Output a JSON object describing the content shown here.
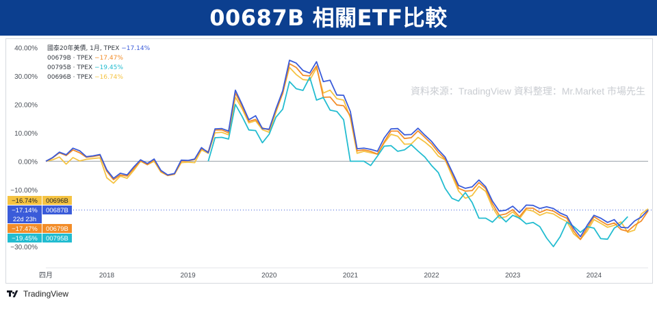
{
  "banner": {
    "title": "00687B 相關ETF比較"
  },
  "watermark": "資料來源：TradingView 資料整理：Mr.Market 市場先生",
  "footer": {
    "brand": "TradingView"
  },
  "colors": {
    "00687B": "#3a5bd9",
    "00679B": "#f28c28",
    "00795B": "#22bcd0",
    "00696B": "#f5c342",
    "zero_line": "#9aa0a6",
    "current_line": "#3a5bd9"
  },
  "chart_data": {
    "type": "line",
    "y_unit": "%",
    "ylim": [
      -36.5,
      42
    ],
    "x_tick_labels": [
      "四月",
      "2018",
      "2019",
      "2020",
      "2021",
      "2022",
      "2023",
      "2024"
    ],
    "x_tick_dates": [
      "2017-04",
      "2018-01",
      "2019-01",
      "2020-01",
      "2021-01",
      "2022-01",
      "2023-01",
      "2024-01"
    ],
    "y_ticks": [
      40,
      30,
      20,
      10,
      0,
      -10,
      -20,
      -30
    ],
    "y_tick_labels": [
      "40.00%",
      "30.00%",
      "20.00%",
      "10.00%",
      "0.00%",
      "−10.00%",
      "−20.00%",
      "−30.00%"
    ],
    "grid": false,
    "legend": [
      {
        "label": "國泰20年美債, 1月, TPEX",
        "value": "−17.14%",
        "color_key": "00687B"
      },
      {
        "label": "00679B · TPEX",
        "value": "−17.47%",
        "color_key": "00679B"
      },
      {
        "label": "00795B · TPEX",
        "value": "−19.45%",
        "color_key": "00795B"
      },
      {
        "label": "00696B · TPEX",
        "value": "−16.74%",
        "color_key": "00696B"
      }
    ],
    "price_tags": [
      {
        "value": "−16.74%",
        "name": "00696B",
        "color_key": "00696B",
        "y": -16.74
      },
      {
        "value": "−17.14%",
        "name": "00687B",
        "color_key": "00687B",
        "y": -17.14
      },
      {
        "value": "22d 23h",
        "name": "",
        "color_key": "00687B",
        "y": -17.14
      },
      {
        "value": "−17.47%",
        "name": "00679B",
        "color_key": "00679B",
        "y": -17.47
      },
      {
        "value": "−19.45%",
        "name": "00795B",
        "color_key": "00795B",
        "y": -19.45
      }
    ],
    "x_dates": [
      "2017-04",
      "2017-05",
      "2017-06",
      "2017-07",
      "2017-08",
      "2017-09",
      "2017-10",
      "2017-11",
      "2017-12",
      "2018-01",
      "2018-02",
      "2018-03",
      "2018-04",
      "2018-05",
      "2018-06",
      "2018-07",
      "2018-08",
      "2018-09",
      "2018-10",
      "2018-11",
      "2018-12",
      "2019-01",
      "2019-02",
      "2019-03",
      "2019-04",
      "2019-05",
      "2019-06",
      "2019-07",
      "2019-08",
      "2019-09",
      "2019-10",
      "2019-11",
      "2019-12",
      "2020-01",
      "2020-02",
      "2020-03",
      "2020-04",
      "2020-05",
      "2020-06",
      "2020-07",
      "2020-08",
      "2020-09",
      "2020-10",
      "2020-11",
      "2020-12",
      "2021-01",
      "2021-02",
      "2021-03",
      "2021-04",
      "2021-05",
      "2021-06",
      "2021-07",
      "2021-08",
      "2021-09",
      "2021-10",
      "2021-11",
      "2021-12",
      "2022-01",
      "2022-02",
      "2022-03",
      "2022-04",
      "2022-05",
      "2022-06",
      "2022-07",
      "2022-08",
      "2022-09",
      "2022-10",
      "2022-11",
      "2022-12",
      "2023-01",
      "2023-02",
      "2023-03",
      "2023-04",
      "2023-05",
      "2023-06",
      "2023-07",
      "2023-08",
      "2023-09",
      "2023-10",
      "2023-11",
      "2023-12",
      "2024-01",
      "2024-02",
      "2024-03",
      "2024-04",
      "2024-05",
      "2024-06",
      "2024-07",
      "2024-08",
      "2024-09"
    ],
    "series": [
      {
        "name": "00696B",
        "color_key": "00696B",
        "values": [
          0,
          0.5,
          1.5,
          -1.0,
          1.3,
          0.1,
          0.7,
          1.0,
          1.2,
          -5.8,
          -7.7,
          -5.2,
          -6.0,
          -3.2,
          0.0,
          -1.2,
          0.0,
          -3.8,
          -5.0,
          -4.6,
          -0.5,
          -0.3,
          -0.5,
          4.0,
          2.8,
          10.0,
          10.2,
          9.3,
          22.5,
          18.5,
          13.5,
          14.2,
          11.1,
          10.2,
          17.2,
          24.0,
          33.0,
          30.5,
          28.7,
          28.5,
          32.8,
          24.0,
          25.0,
          22.0,
          21.5,
          15.3,
          2.8,
          3.5,
          3.0,
          2.5,
          6.4,
          9.5,
          8.8,
          6.0,
          6.1,
          8.4,
          6.8,
          4.8,
          1.8,
          0.5,
          -5.0,
          -10.5,
          -13.0,
          -12.0,
          -8.8,
          -10.6,
          -16.2,
          -20.0,
          -19.5,
          -17.8,
          -20.2,
          -17.0,
          -17.5,
          -19.0,
          -18.0,
          -18.5,
          -20.0,
          -21.2,
          -25.5,
          -27.5,
          -24.5,
          -20.5,
          -21.8,
          -23.2,
          -22.5,
          -21.3,
          -25.0,
          -24.2,
          -18.5,
          -16.74
        ]
      },
      {
        "name": "00679B",
        "color_key": "00679B",
        "values": [
          0,
          1.2,
          3.0,
          2.0,
          4.0,
          3.0,
          1.4,
          1.7,
          2.1,
          -3.5,
          -6.5,
          -4.8,
          -5.2,
          -2.6,
          0.2,
          -1.2,
          0.5,
          -3.5,
          -5.0,
          -4.5,
          0.0,
          0.2,
          0.6,
          4.4,
          3.3,
          11.0,
          11.0,
          10.0,
          24.0,
          19.4,
          14.0,
          14.7,
          11.7,
          11.0,
          18.0,
          23.8,
          34.3,
          33.0,
          30.2,
          30.0,
          33.5,
          22.5,
          22.6,
          19.8,
          19.5,
          16.0,
          3.7,
          4.0,
          3.5,
          2.5,
          6.8,
          10.6,
          10.6,
          8.0,
          8.3,
          10.7,
          8.4,
          6.1,
          3.1,
          0.8,
          -4.0,
          -9.5,
          -10.5,
          -10.3,
          -7.5,
          -9.6,
          -15.0,
          -19.0,
          -18.5,
          -17.0,
          -19.5,
          -16.5,
          -16.5,
          -18.0,
          -17.0,
          -17.5,
          -19.0,
          -20.0,
          -24.5,
          -27.5,
          -23.5,
          -19.5,
          -21.0,
          -22.4,
          -21.7,
          -24.0,
          -24.6,
          -22.5,
          -21.0,
          -17.47
        ]
      },
      {
        "name": "00795B",
        "color_key": "00795B",
        "values": [
          null,
          null,
          null,
          null,
          null,
          null,
          null,
          null,
          null,
          null,
          null,
          null,
          null,
          null,
          null,
          null,
          null,
          null,
          null,
          null,
          null,
          null,
          null,
          null,
          0,
          8.3,
          8.4,
          7.8,
          20.0,
          15.8,
          11.0,
          10.8,
          6.5,
          9.5,
          15.5,
          18.3,
          28.0,
          25.5,
          24.9,
          29.5,
          21.5,
          22.4,
          18.0,
          17.5,
          14.6,
          0.0,
          0.0,
          0.0,
          -1.5,
          1.8,
          5.3,
          5.5,
          3.5,
          4.0,
          5.8,
          3.6,
          1.5,
          -1.5,
          -4.0,
          -9.5,
          -13.0,
          -14.0,
          -11.0,
          -14.5,
          -20.0,
          -20.0,
          -21.4,
          -19.0,
          -21.3,
          -19.0,
          -20.0,
          -22.0,
          -21.5,
          -23.0,
          -27.0,
          -30.0,
          -26.5,
          -21.4,
          -22.9,
          -25.0,
          -23.0,
          -23.5,
          -27.2,
          -27.4,
          -23.5,
          -22.0,
          -19.45
        ]
      },
      {
        "name": "00687B",
        "color_key": "00687B",
        "values": [
          0,
          1.3,
          3.2,
          2.3,
          4.6,
          3.7,
          1.6,
          1.9,
          2.4,
          -3.0,
          -6.0,
          -4.2,
          -4.8,
          -2.0,
          0.5,
          -0.8,
          0.8,
          -3.2,
          -4.8,
          -4.3,
          0.4,
          0.3,
          0.8,
          4.8,
          3.0,
          11.4,
          11.5,
          10.6,
          25.0,
          20.0,
          14.6,
          16.0,
          11.5,
          11.3,
          18.4,
          24.8,
          35.5,
          34.5,
          31.9,
          31.0,
          35.0,
          28.0,
          28.5,
          23.3,
          23.2,
          17.5,
          4.4,
          4.6,
          4.2,
          3.5,
          8.2,
          11.4,
          11.5,
          9.3,
          9.4,
          11.6,
          9.2,
          7.0,
          4.0,
          1.5,
          -3.5,
          -8.5,
          -9.5,
          -9.0,
          -6.6,
          -9.0,
          -14.0,
          -17.5,
          -17.2,
          -15.8,
          -18.0,
          -15.4,
          -15.5,
          -16.6,
          -16.0,
          -16.6,
          -18.2,
          -19.2,
          -23.5,
          -26.5,
          -22.5,
          -19.0,
          -20.0,
          -21.5,
          -20.5,
          -23.2,
          -23.4,
          -21.0,
          -19.6,
          -17.14
        ]
      }
    ]
  }
}
